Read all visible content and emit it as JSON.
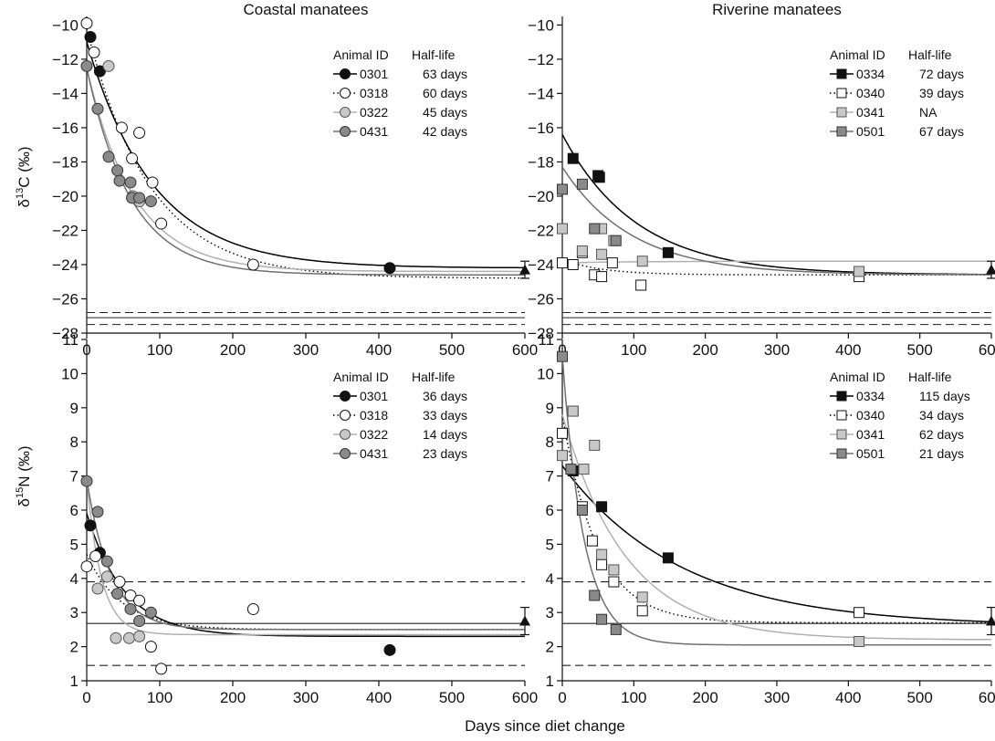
{
  "figure": {
    "xlabel": "Days since diet change",
    "row_ylabels": [
      {
        "base": "δ",
        "sup": "13",
        "rest": "C (‰)"
      },
      {
        "base": "δ",
        "sup": "15",
        "rest": "N (‰)"
      }
    ]
  },
  "chart_data": [
    {
      "type": "scatter",
      "title": "Coastal manatees",
      "xlim": [
        0,
        600
      ],
      "ylim": [
        -28,
        -9.5
      ],
      "xticks": [
        0,
        100,
        200,
        300,
        400,
        500,
        600
      ],
      "yticks": [
        -28,
        -26,
        -24,
        -22,
        -20,
        -18,
        -16,
        -14,
        -12,
        -10
      ],
      "legend_headers": [
        "Animal ID",
        "Half-life"
      ],
      "marker": "circle",
      "series": [
        {
          "name": "0301",
          "half_life": "63 days",
          "fill": "#111111",
          "stroke": "#111111",
          "line_color": "#000000",
          "line_style": "solid",
          "points": [
            [
              5,
              -10.7
            ],
            [
              18,
              -12.7
            ],
            [
              415,
              -24.2
            ]
          ],
          "fit": {
            "y0": -11.0,
            "asym": -24.2,
            "k": 0.011
          }
        },
        {
          "name": "0318",
          "half_life": "60 days",
          "fill": "#ffffff",
          "stroke": "#111111",
          "line_color": "#000000",
          "line_style": "dotted",
          "points": [
            [
              0,
              -9.9
            ],
            [
              10,
              -11.6
            ],
            [
              48,
              -16.0
            ],
            [
              62,
              -17.8
            ],
            [
              72,
              -16.3
            ],
            [
              90,
              -19.2
            ],
            [
              102,
              -21.6
            ],
            [
              228,
              -24.0
            ]
          ],
          "fit": {
            "y0": -10.2,
            "asym": -24.8,
            "k": 0.0115
          }
        },
        {
          "name": "0322",
          "half_life": "45 days",
          "fill": "#c8c8c8",
          "stroke": "#555555",
          "line_color": "#b0b0b0",
          "line_style": "solid",
          "points": [
            [
              30,
              -12.4
            ],
            [
              63,
              -20.0
            ],
            [
              72,
              -20.3
            ]
          ],
          "fit": {
            "y0": -12.5,
            "asym": -24.4,
            "k": 0.0154
          }
        },
        {
          "name": "0431",
          "half_life": "42 days",
          "fill": "#8a8a8a",
          "stroke": "#333333",
          "line_color": "#707070",
          "line_style": "solid",
          "points": [
            [
              0,
              -12.4
            ],
            [
              15,
              -14.9
            ],
            [
              30,
              -17.7
            ],
            [
              42,
              -18.5
            ],
            [
              45,
              -19.1
            ],
            [
              60,
              -19.2
            ],
            [
              62,
              -20.1
            ],
            [
              72,
              -20.1
            ],
            [
              88,
              -20.3
            ]
          ],
          "fit": {
            "y0": -12.5,
            "asym": -24.6,
            "k": 0.0165
          }
        }
      ],
      "reference": {
        "x": 600,
        "y": -24.3,
        "err": 0.5,
        "hlines": [
          {
            "y": -26.8,
            "style": "dashed"
          },
          {
            "y": -27.1,
            "style": "solid"
          },
          {
            "y": -27.5,
            "style": "dashed"
          }
        ]
      }
    },
    {
      "type": "scatter",
      "title": "Riverine manatees",
      "xlim": [
        0,
        600
      ],
      "ylim": [
        -28,
        -9.5
      ],
      "xticks": [
        0,
        100,
        200,
        300,
        400,
        500,
        600
      ],
      "yticks": [
        -28,
        -26,
        -24,
        -22,
        -20,
        -18,
        -16,
        -14,
        -12,
        -10
      ],
      "legend_headers": [
        "Animal ID",
        "Half-life"
      ],
      "marker": "square",
      "series": [
        {
          "name": "0334",
          "half_life": "72 days",
          "fill": "#111111",
          "stroke": "#111111",
          "line_color": "#000000",
          "line_style": "solid",
          "points": [
            [
              15,
              -17.8
            ],
            [
              50,
              -18.8
            ],
            [
              52,
              -18.9
            ],
            [
              148,
              -23.3
            ]
          ],
          "fit": {
            "y0": -16.4,
            "asym": -24.6,
            "k": 0.0096
          }
        },
        {
          "name": "0340",
          "half_life": "39 days",
          "fill": "#ffffff",
          "stroke": "#111111",
          "line_color": "#000000",
          "line_style": "dotted",
          "points": [
            [
              0,
              -23.9
            ],
            [
              15,
              -24.0
            ],
            [
              28,
              -23.3
            ],
            [
              45,
              -24.6
            ],
            [
              55,
              -24.7
            ],
            [
              70,
              -23.9
            ],
            [
              110,
              -25.2
            ],
            [
              415,
              -24.7
            ]
          ],
          "fit": {
            "y0": -23.7,
            "asym": -24.6,
            "k": 0.0178
          }
        },
        {
          "name": "0341",
          "half_life": "NA",
          "fill": "#c8c8c8",
          "stroke": "#555555",
          "line_color": "#b0b0b0",
          "line_style": "solid",
          "points": [
            [
              0,
              -21.9
            ],
            [
              28,
              -23.2
            ],
            [
              55,
              -23.4
            ],
            [
              55,
              -21.9
            ],
            [
              72,
              -22.6
            ],
            [
              112,
              -23.8
            ],
            [
              415,
              -24.4
            ]
          ],
          "fit": {
            "y0": -23.9,
            "asym": -23.8,
            "k": 0.01
          }
        },
        {
          "name": "0501",
          "half_life": "67 days",
          "fill": "#8a8a8a",
          "stroke": "#333333",
          "line_color": "#707070",
          "line_style": "solid",
          "points": [
            [
              0,
              -19.6
            ],
            [
              28,
              -19.3
            ],
            [
              45,
              -21.9
            ],
            [
              75,
              -22.6
            ]
          ],
          "fit": {
            "y0": -18.3,
            "asym": -24.6,
            "k": 0.0103
          }
        }
      ],
      "reference": {
        "x": 600,
        "y": -24.3,
        "err": 0.5,
        "hlines": [
          {
            "y": -26.8,
            "style": "dashed"
          },
          {
            "y": -27.1,
            "style": "solid"
          },
          {
            "y": -27.5,
            "style": "dashed"
          }
        ]
      }
    },
    {
      "type": "scatter",
      "title": "",
      "xlim": [
        0,
        600
      ],
      "ylim": [
        1,
        11
      ],
      "xticks": [
        0,
        100,
        200,
        300,
        400,
        500,
        600
      ],
      "yticks": [
        1,
        2,
        3,
        4,
        5,
        6,
        7,
        8,
        9,
        10,
        11
      ],
      "legend_headers": [
        "Animal ID",
        "Half-life"
      ],
      "marker": "circle",
      "series": [
        {
          "name": "0301",
          "half_life": "36 days",
          "fill": "#111111",
          "stroke": "#111111",
          "line_color": "#000000",
          "line_style": "solid",
          "points": [
            [
              5,
              5.55
            ],
            [
              18,
              4.75
            ],
            [
              415,
              1.9
            ]
          ],
          "fit": {
            "y0": 5.9,
            "asym": 2.3,
            "k": 0.0193
          }
        },
        {
          "name": "0318",
          "half_life": "33 days",
          "fill": "#ffffff",
          "stroke": "#111111",
          "line_color": "#000000",
          "line_style": "dotted",
          "points": [
            [
              0,
              4.35
            ],
            [
              12,
              4.65
            ],
            [
              45,
              3.9
            ],
            [
              60,
              3.5
            ],
            [
              72,
              3.35
            ],
            [
              88,
              2.0
            ],
            [
              102,
              1.35
            ],
            [
              228,
              3.1
            ]
          ],
          "fit": {
            "y0": 4.7,
            "asym": 2.5,
            "k": 0.021
          }
        },
        {
          "name": "0322",
          "half_life": "14 days",
          "fill": "#c8c8c8",
          "stroke": "#555555",
          "line_color": "#b0b0b0",
          "line_style": "solid",
          "points": [
            [
              15,
              3.7
            ],
            [
              28,
              4.05
            ],
            [
              40,
              2.25
            ],
            [
              58,
              2.25
            ],
            [
              72,
              2.3
            ]
          ],
          "fit": {
            "y0": 6.9,
            "asym": 2.35,
            "k": 0.0495
          }
        },
        {
          "name": "0431",
          "half_life": "23 days",
          "fill": "#8a8a8a",
          "stroke": "#333333",
          "line_color": "#707070",
          "line_style": "solid",
          "points": [
            [
              0,
              6.85
            ],
            [
              15,
              5.95
            ],
            [
              28,
              4.5
            ],
            [
              42,
              3.55
            ],
            [
              60,
              3.1
            ],
            [
              72,
              2.75
            ],
            [
              88,
              3.0
            ]
          ],
          "fit": {
            "y0": 6.9,
            "asym": 2.5,
            "k": 0.0301
          }
        }
      ],
      "reference": {
        "x": 600,
        "y": 2.75,
        "err": 0.4,
        "hlines": [
          {
            "y": 3.9,
            "style": "dashed"
          },
          {
            "y": 2.68,
            "style": "solid"
          },
          {
            "y": 1.45,
            "style": "dashed"
          }
        ]
      }
    },
    {
      "type": "scatter",
      "title": "",
      "xlim": [
        0,
        600
      ],
      "ylim": [
        1,
        11
      ],
      "xticks": [
        0,
        100,
        200,
        300,
        400,
        500,
        600
      ],
      "yticks": [
        1,
        2,
        3,
        4,
        5,
        6,
        7,
        8,
        9,
        10,
        11
      ],
      "legend_headers": [
        "Animal ID",
        "Half-life"
      ],
      "marker": "square",
      "series": [
        {
          "name": "0334",
          "half_life": "115 days",
          "fill": "#111111",
          "stroke": "#111111",
          "line_color": "#000000",
          "line_style": "solid",
          "points": [
            [
              15,
              7.15
            ],
            [
              55,
              6.1
            ],
            [
              148,
              4.6
            ]
          ],
          "fit": {
            "y0": 7.3,
            "asym": 2.6,
            "k": 0.006
          }
        },
        {
          "name": "0340",
          "half_life": "34 days",
          "fill": "#ffffff",
          "stroke": "#111111",
          "line_color": "#000000",
          "line_style": "dotted",
          "points": [
            [
              0,
              8.25
            ],
            [
              15,
              8.9
            ],
            [
              28,
              6.1
            ],
            [
              42,
              5.1
            ],
            [
              55,
              4.4
            ],
            [
              72,
              3.9
            ],
            [
              112,
              3.05
            ],
            [
              415,
              3.0
            ]
          ],
          "fit": {
            "y0": 8.8,
            "asym": 2.7,
            "k": 0.0204
          }
        },
        {
          "name": "0341",
          "half_life": "62 days",
          "fill": "#c8c8c8",
          "stroke": "#555555",
          "line_color": "#b0b0b0",
          "line_style": "solid",
          "points": [
            [
              0,
              7.6
            ],
            [
              15,
              8.9
            ],
            [
              30,
              7.2
            ],
            [
              45,
              7.9
            ],
            [
              55,
              4.7
            ],
            [
              72,
              4.25
            ],
            [
              112,
              3.45
            ],
            [
              415,
              2.15
            ]
          ],
          "fit": {
            "y0": 8.8,
            "asym": 2.2,
            "k": 0.0112
          }
        },
        {
          "name": "0501",
          "half_life": "21 days",
          "fill": "#8a8a8a",
          "stroke": "#333333",
          "line_color": "#707070",
          "line_style": "solid",
          "points": [
            [
              0,
              10.5
            ],
            [
              12,
              7.2
            ],
            [
              28,
              6.0
            ],
            [
              45,
              3.5
            ],
            [
              55,
              2.8
            ],
            [
              75,
              2.5
            ]
          ],
          "fit": {
            "y0": 10.5,
            "asym": 2.05,
            "k": 0.033
          }
        }
      ],
      "reference": {
        "x": 600,
        "y": 2.75,
        "err": 0.4,
        "hlines": [
          {
            "y": 3.9,
            "style": "dashed"
          },
          {
            "y": 2.68,
            "style": "solid"
          },
          {
            "y": 1.45,
            "style": "dashed"
          }
        ]
      }
    }
  ]
}
